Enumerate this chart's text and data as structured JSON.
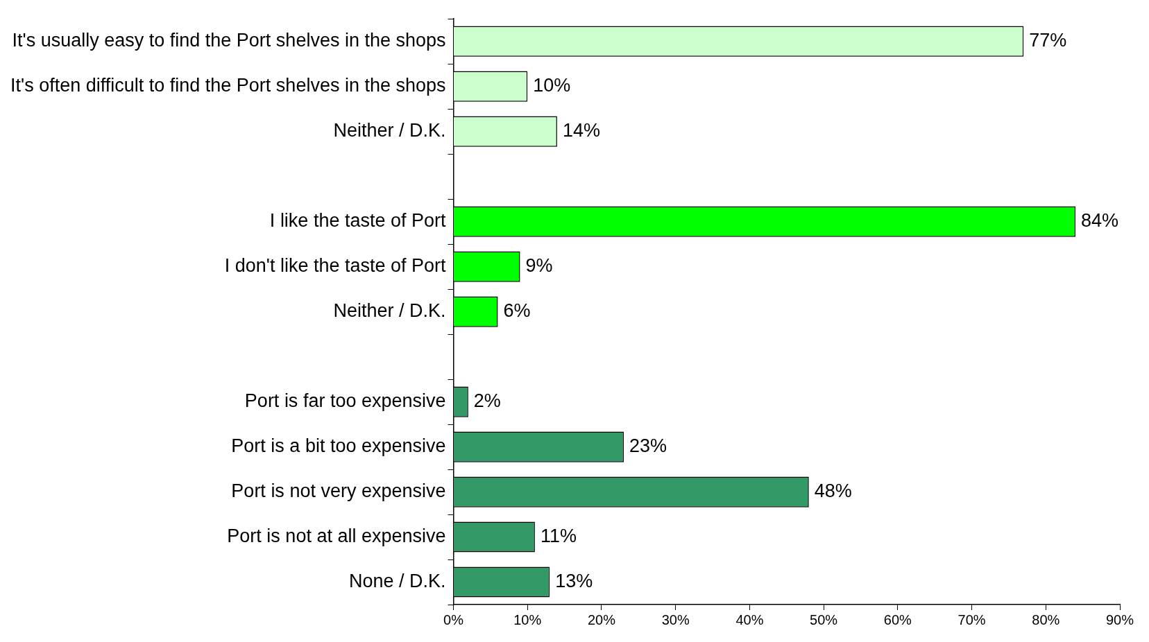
{
  "chart_data": {
    "type": "bar",
    "orientation": "horizontal",
    "categories": [
      "It's usually easy to find the Port shelves in the shops",
      "It's often difficult to find the Port shelves in the shops",
      "Neither / D.K.",
      null,
      "I like the taste of Port",
      "I don't like the taste of Port",
      "Neither / D.K.",
      null,
      "Port is far too expensive",
      "Port is a bit too expensive",
      "Port is not very expensive",
      "Port is not at all expensive",
      "None / D.K."
    ],
    "values": [
      77,
      10,
      14,
      null,
      84,
      9,
      6,
      null,
      2,
      23,
      48,
      11,
      13
    ],
    "colors": [
      "#ccffcc",
      "#ccffcc",
      "#ccffcc",
      null,
      "#00ff00",
      "#00ff00",
      "#00ff00",
      null,
      "#339966",
      "#339966",
      "#339966",
      "#339966",
      "#339966"
    ],
    "value_labels": [
      "77%",
      "10%",
      "14%",
      null,
      "84%",
      "9%",
      "6%",
      null,
      "2%",
      "23%",
      "48%",
      "11%",
      "13%"
    ],
    "xlim": [
      0,
      90
    ],
    "xticks": [
      {
        "value": 0,
        "label": "0%"
      },
      {
        "value": 10,
        "label": "10%"
      },
      {
        "value": 20,
        "label": "20%"
      },
      {
        "value": 30,
        "label": "30%"
      },
      {
        "value": 40,
        "label": "40%"
      },
      {
        "value": 50,
        "label": "50%"
      },
      {
        "value": 60,
        "label": "60%"
      },
      {
        "value": 70,
        "label": "70%"
      },
      {
        "value": 80,
        "label": "80%"
      },
      {
        "value": 90,
        "label": "90%"
      }
    ],
    "grid": false,
    "legend": false
  }
}
